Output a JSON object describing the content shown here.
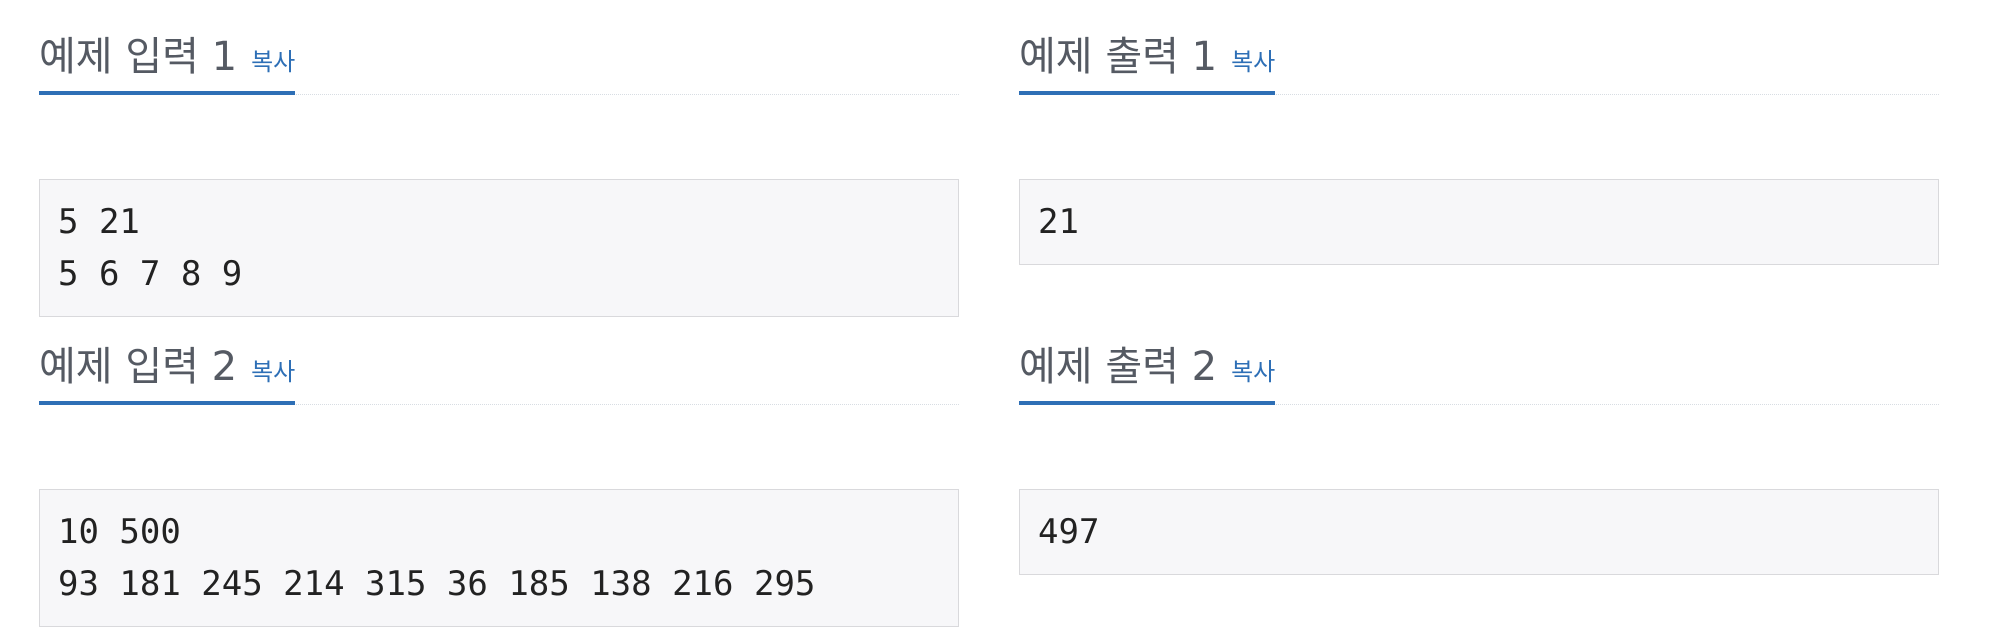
{
  "samples": [
    {
      "title": "예제 입력 1",
      "copy_label": "복사",
      "content": "5 21\n5 6 7 8 9"
    },
    {
      "title": "예제 출력 1",
      "copy_label": "복사",
      "content": "21"
    },
    {
      "title": "예제 입력 2",
      "copy_label": "복사",
      "content": "10 500\n93 181 245 214 315 36 185 138 216 295"
    },
    {
      "title": "예제 출력 2",
      "copy_label": "복사",
      "content": "497"
    }
  ],
  "colors": {
    "accent": "#2e6fb6",
    "title_text": "#555a63",
    "code_background": "#f7f7f9",
    "code_border": "#d9d9dc"
  }
}
